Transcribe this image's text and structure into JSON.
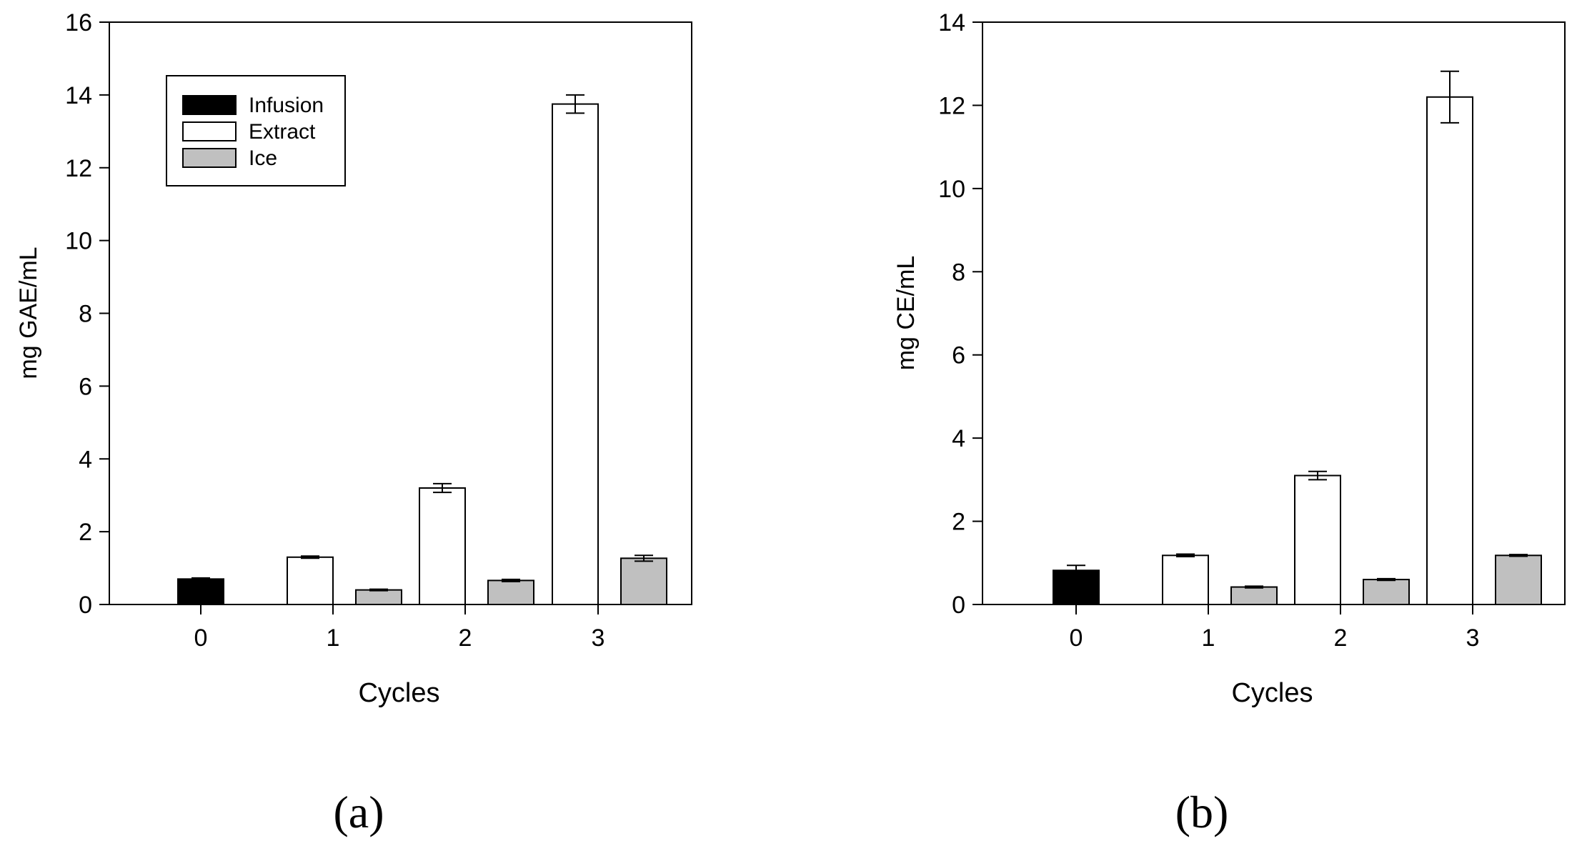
{
  "figure": {
    "colors": {
      "Infusion": "#000000",
      "Extract": "#ffffff",
      "Ice": "#c0c0c0",
      "axis": "#000000"
    }
  },
  "chart_data": [
    {
      "type": "bar",
      "panel_label": "(a)",
      "title": "",
      "xlabel": "Cycles",
      "ylabel": "mg GAE/mL",
      "ylim": [
        0,
        16
      ],
      "yticks": [
        0,
        2,
        4,
        6,
        8,
        10,
        12,
        14,
        16
      ],
      "categories": [
        "0",
        "1",
        "2",
        "3"
      ],
      "legend_position": "top-left",
      "series": [
        {
          "name": "Infusion",
          "values": [
            0.7,
            null,
            null,
            null
          ],
          "errors": [
            0.03,
            null,
            null,
            null
          ]
        },
        {
          "name": "Extract",
          "values": [
            null,
            1.3,
            3.2,
            13.75
          ],
          "errors": [
            null,
            0.03,
            0.12,
            0.25
          ]
        },
        {
          "name": "Ice",
          "values": [
            null,
            0.4,
            0.66,
            1.27
          ],
          "errors": [
            null,
            0.02,
            0.03,
            0.08
          ]
        }
      ]
    },
    {
      "type": "bar",
      "panel_label": "(b)",
      "title": "",
      "xlabel": "Cycles",
      "ylabel": "mg CE/mL",
      "ylim": [
        0,
        14
      ],
      "yticks": [
        0,
        2,
        4,
        6,
        8,
        10,
        12,
        14
      ],
      "categories": [
        "0",
        "1",
        "2",
        "3"
      ],
      "legend_position": "none",
      "series": [
        {
          "name": "Infusion",
          "values": [
            0.82,
            null,
            null,
            null
          ],
          "errors": [
            0.12,
            null,
            null,
            null
          ]
        },
        {
          "name": "Extract",
          "values": [
            null,
            1.18,
            3.1,
            12.2
          ],
          "errors": [
            null,
            0.03,
            0.1,
            0.62
          ]
        },
        {
          "name": "Ice",
          "values": [
            null,
            0.42,
            0.6,
            1.18
          ],
          "errors": [
            null,
            0.02,
            0.02,
            0.02
          ]
        }
      ]
    }
  ]
}
